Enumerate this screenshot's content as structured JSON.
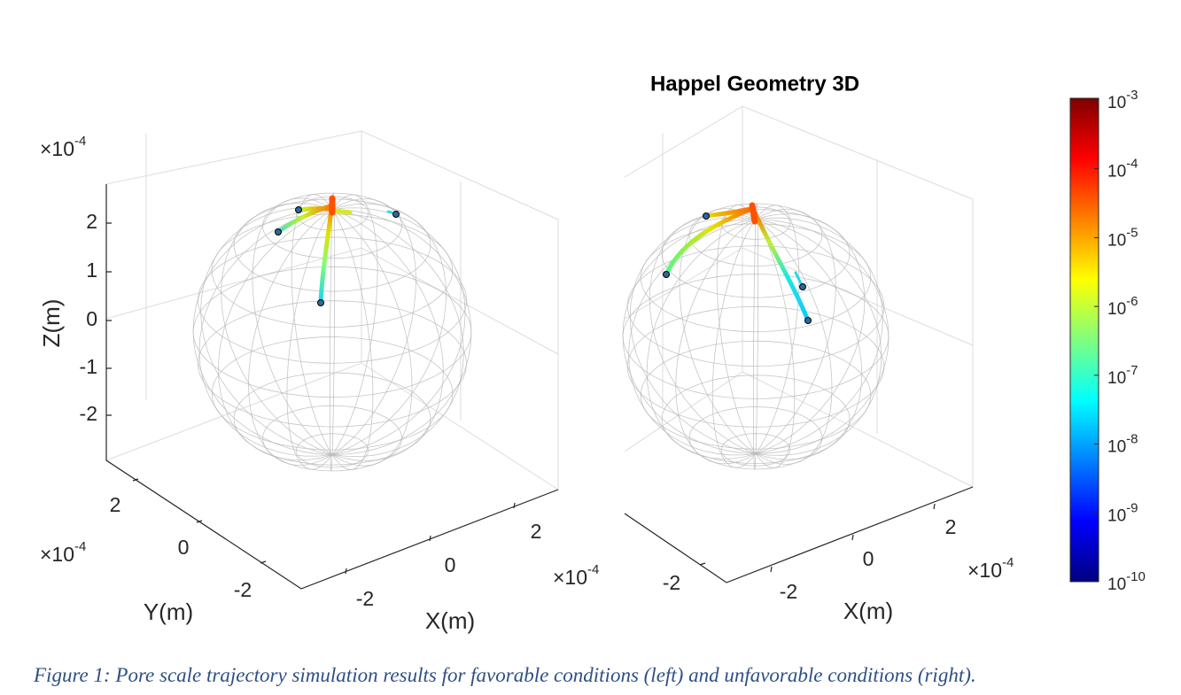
{
  "figure": {
    "title": "Happel Geometry 3D",
    "caption": "Figure 1: Pore scale trajectory simulation results for favorable conditions (left) and unfavorable conditions (right).",
    "left": {
      "z_label": "Z(m)",
      "y_label": "Y(m)",
      "x_label": "X(m)",
      "multiplier": "×10",
      "exponent": "-4",
      "z_ticks": [
        "2",
        "1",
        "0",
        "-1",
        "-2"
      ],
      "y_ticks": [
        "2",
        "0",
        "-2"
      ],
      "x_ticks": [
        "-2",
        "0",
        "2"
      ]
    },
    "right": {
      "x_label": "X(m)",
      "multiplier": "×10",
      "exponent": "-4",
      "y_ticks": [
        "-2"
      ],
      "x_ticks": [
        "-2",
        "0",
        "2"
      ]
    },
    "colorbar": {
      "base": "10",
      "exponents": [
        "-3",
        "-4",
        "-5",
        "-6",
        "-7",
        "-8",
        "-9",
        "-10"
      ]
    }
  }
}
